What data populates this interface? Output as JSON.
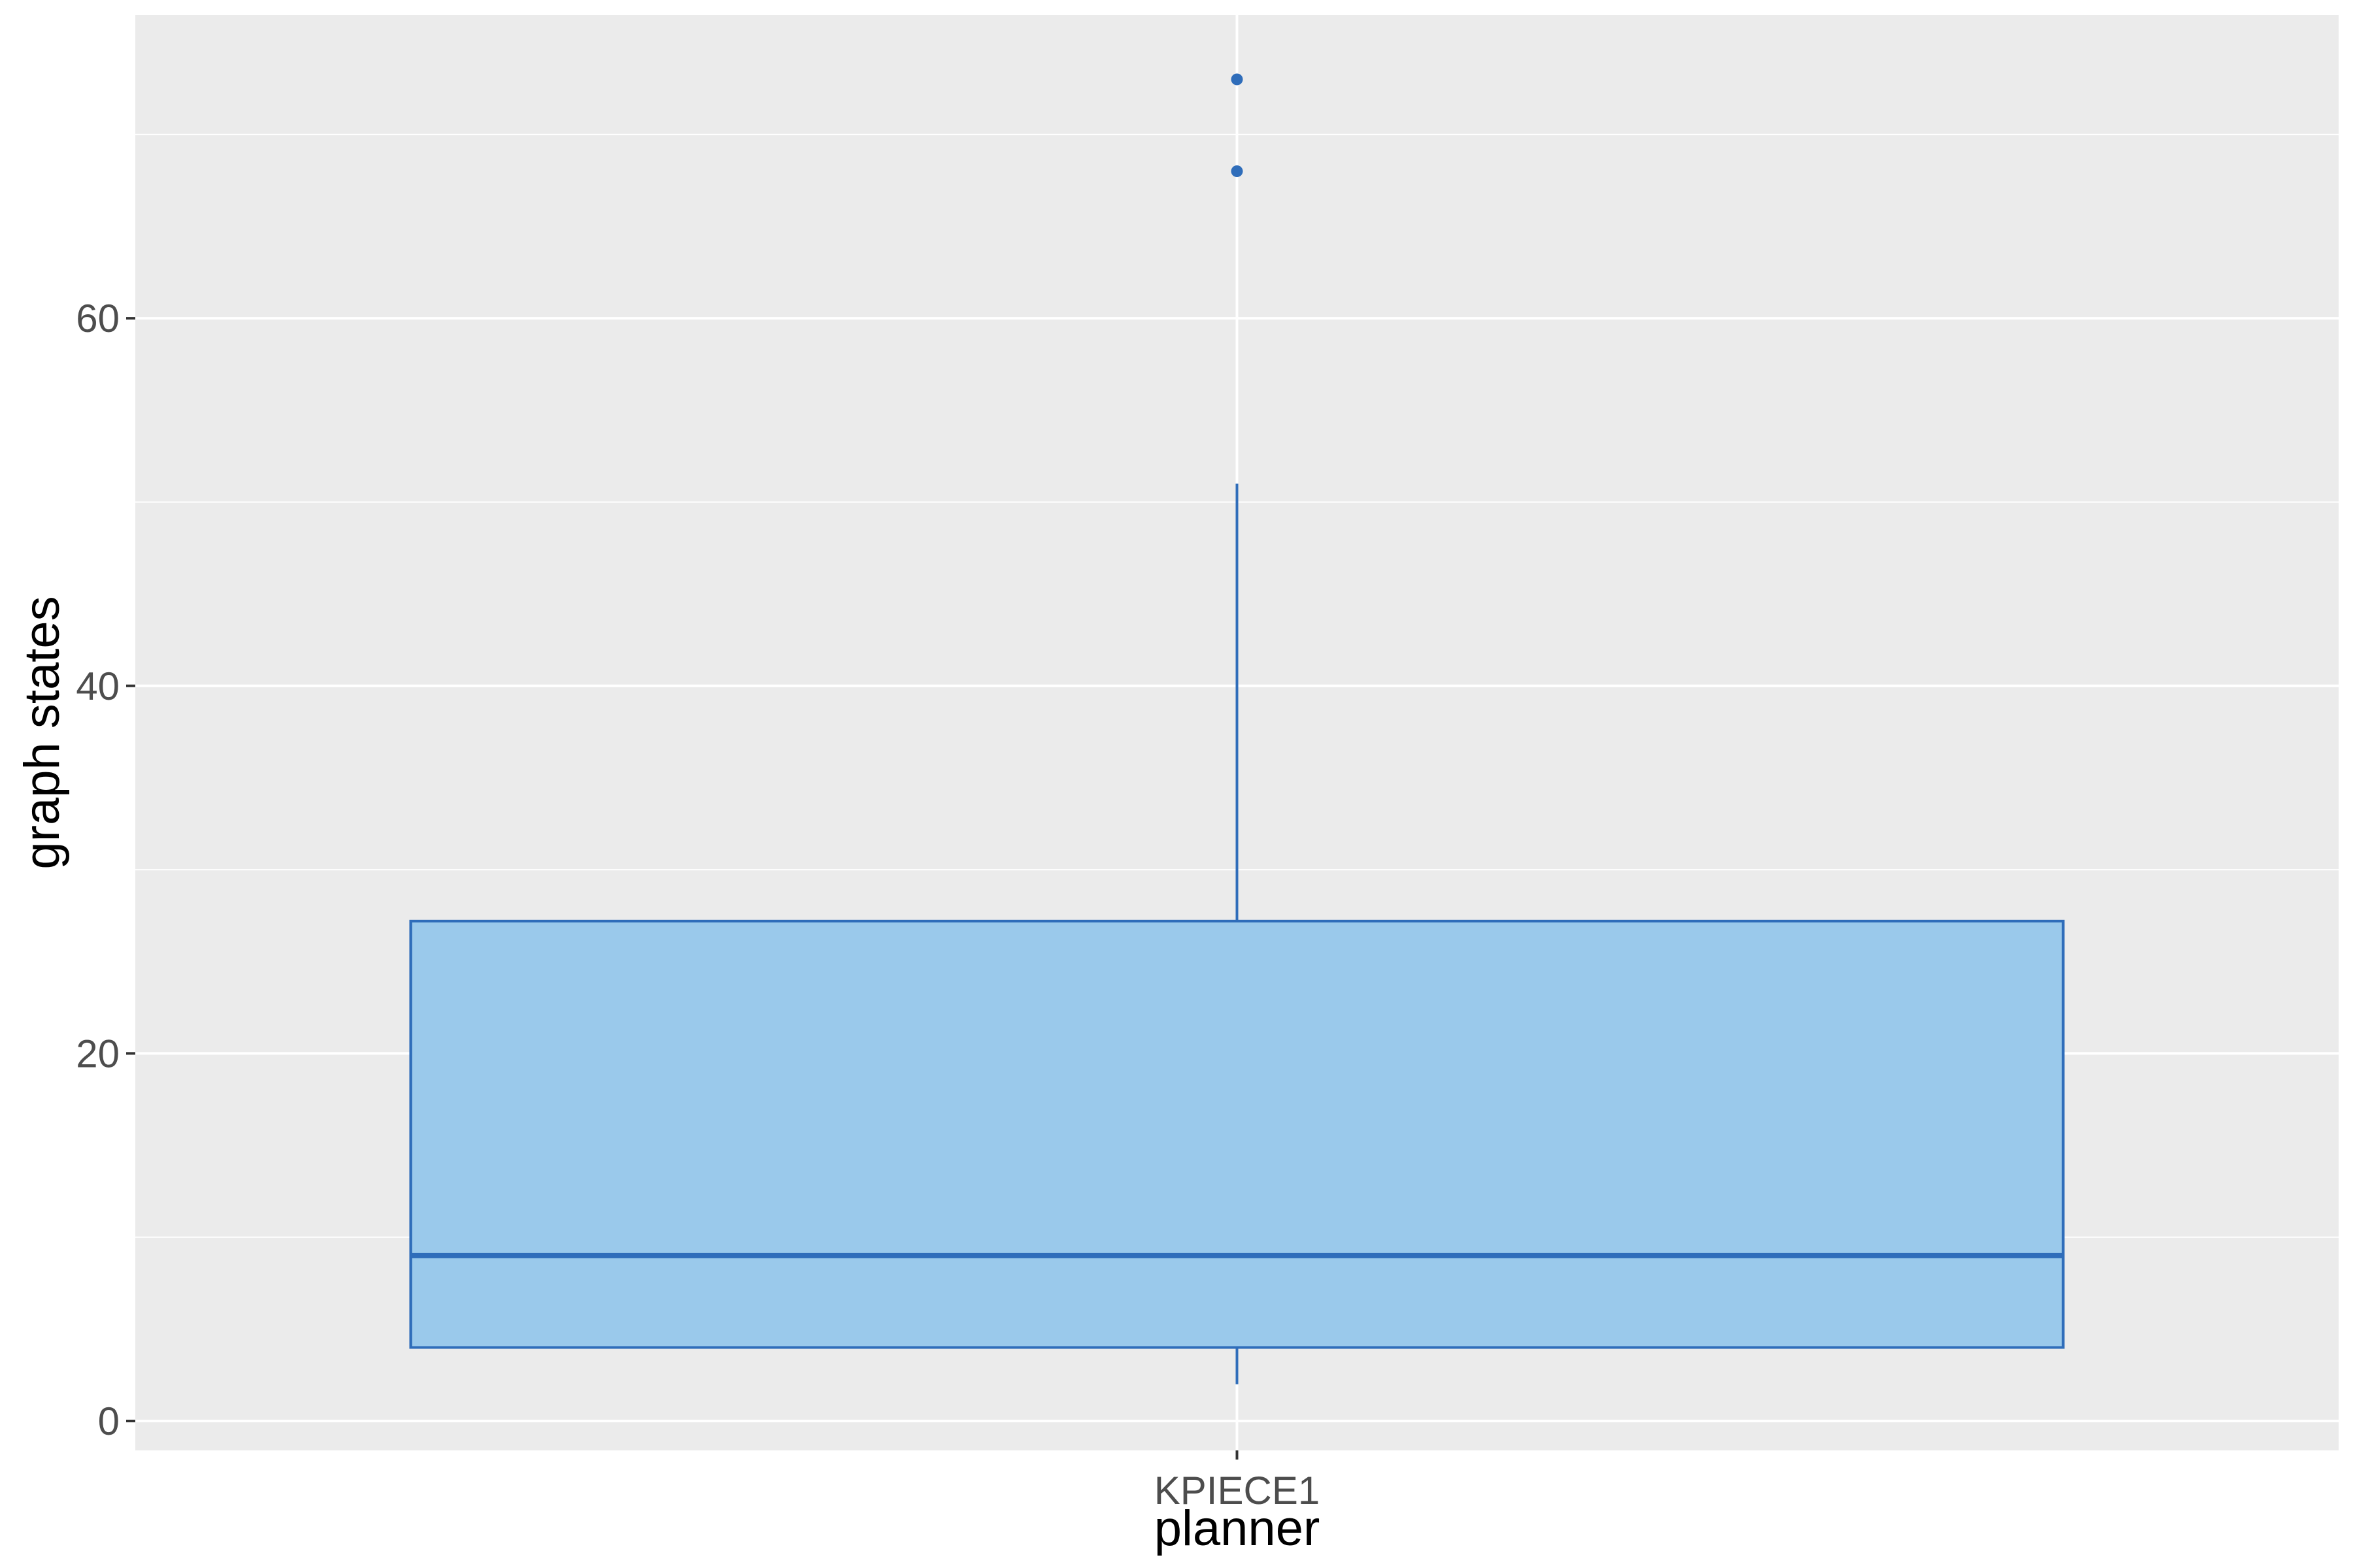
{
  "chart_data": {
    "type": "box",
    "title": "",
    "xlabel": "planner",
    "ylabel": "graph states",
    "categories": [
      "KPIECE1"
    ],
    "boxes": [
      {
        "category": "KPIECE1",
        "whisker_low": 2,
        "q1": 4,
        "median": 9,
        "q3": 27.2,
        "whisker_high": 51,
        "outliers": [
          68,
          73
        ]
      }
    ],
    "ylim": [
      -1.6,
      76.5
    ],
    "yticks": [
      0,
      20,
      40,
      60
    ],
    "ytick_labels": [
      "0",
      "20",
      "40",
      "60"
    ],
    "grid": true,
    "legend": "none",
    "colors": {
      "panel_background": "#EBEBEB",
      "grid_major": "#FFFFFF",
      "box_fill": "#9AC9EB",
      "box_stroke": "#2F6DBA",
      "tick_label": "#4D4D4D",
      "axis_title": "#000000"
    }
  }
}
